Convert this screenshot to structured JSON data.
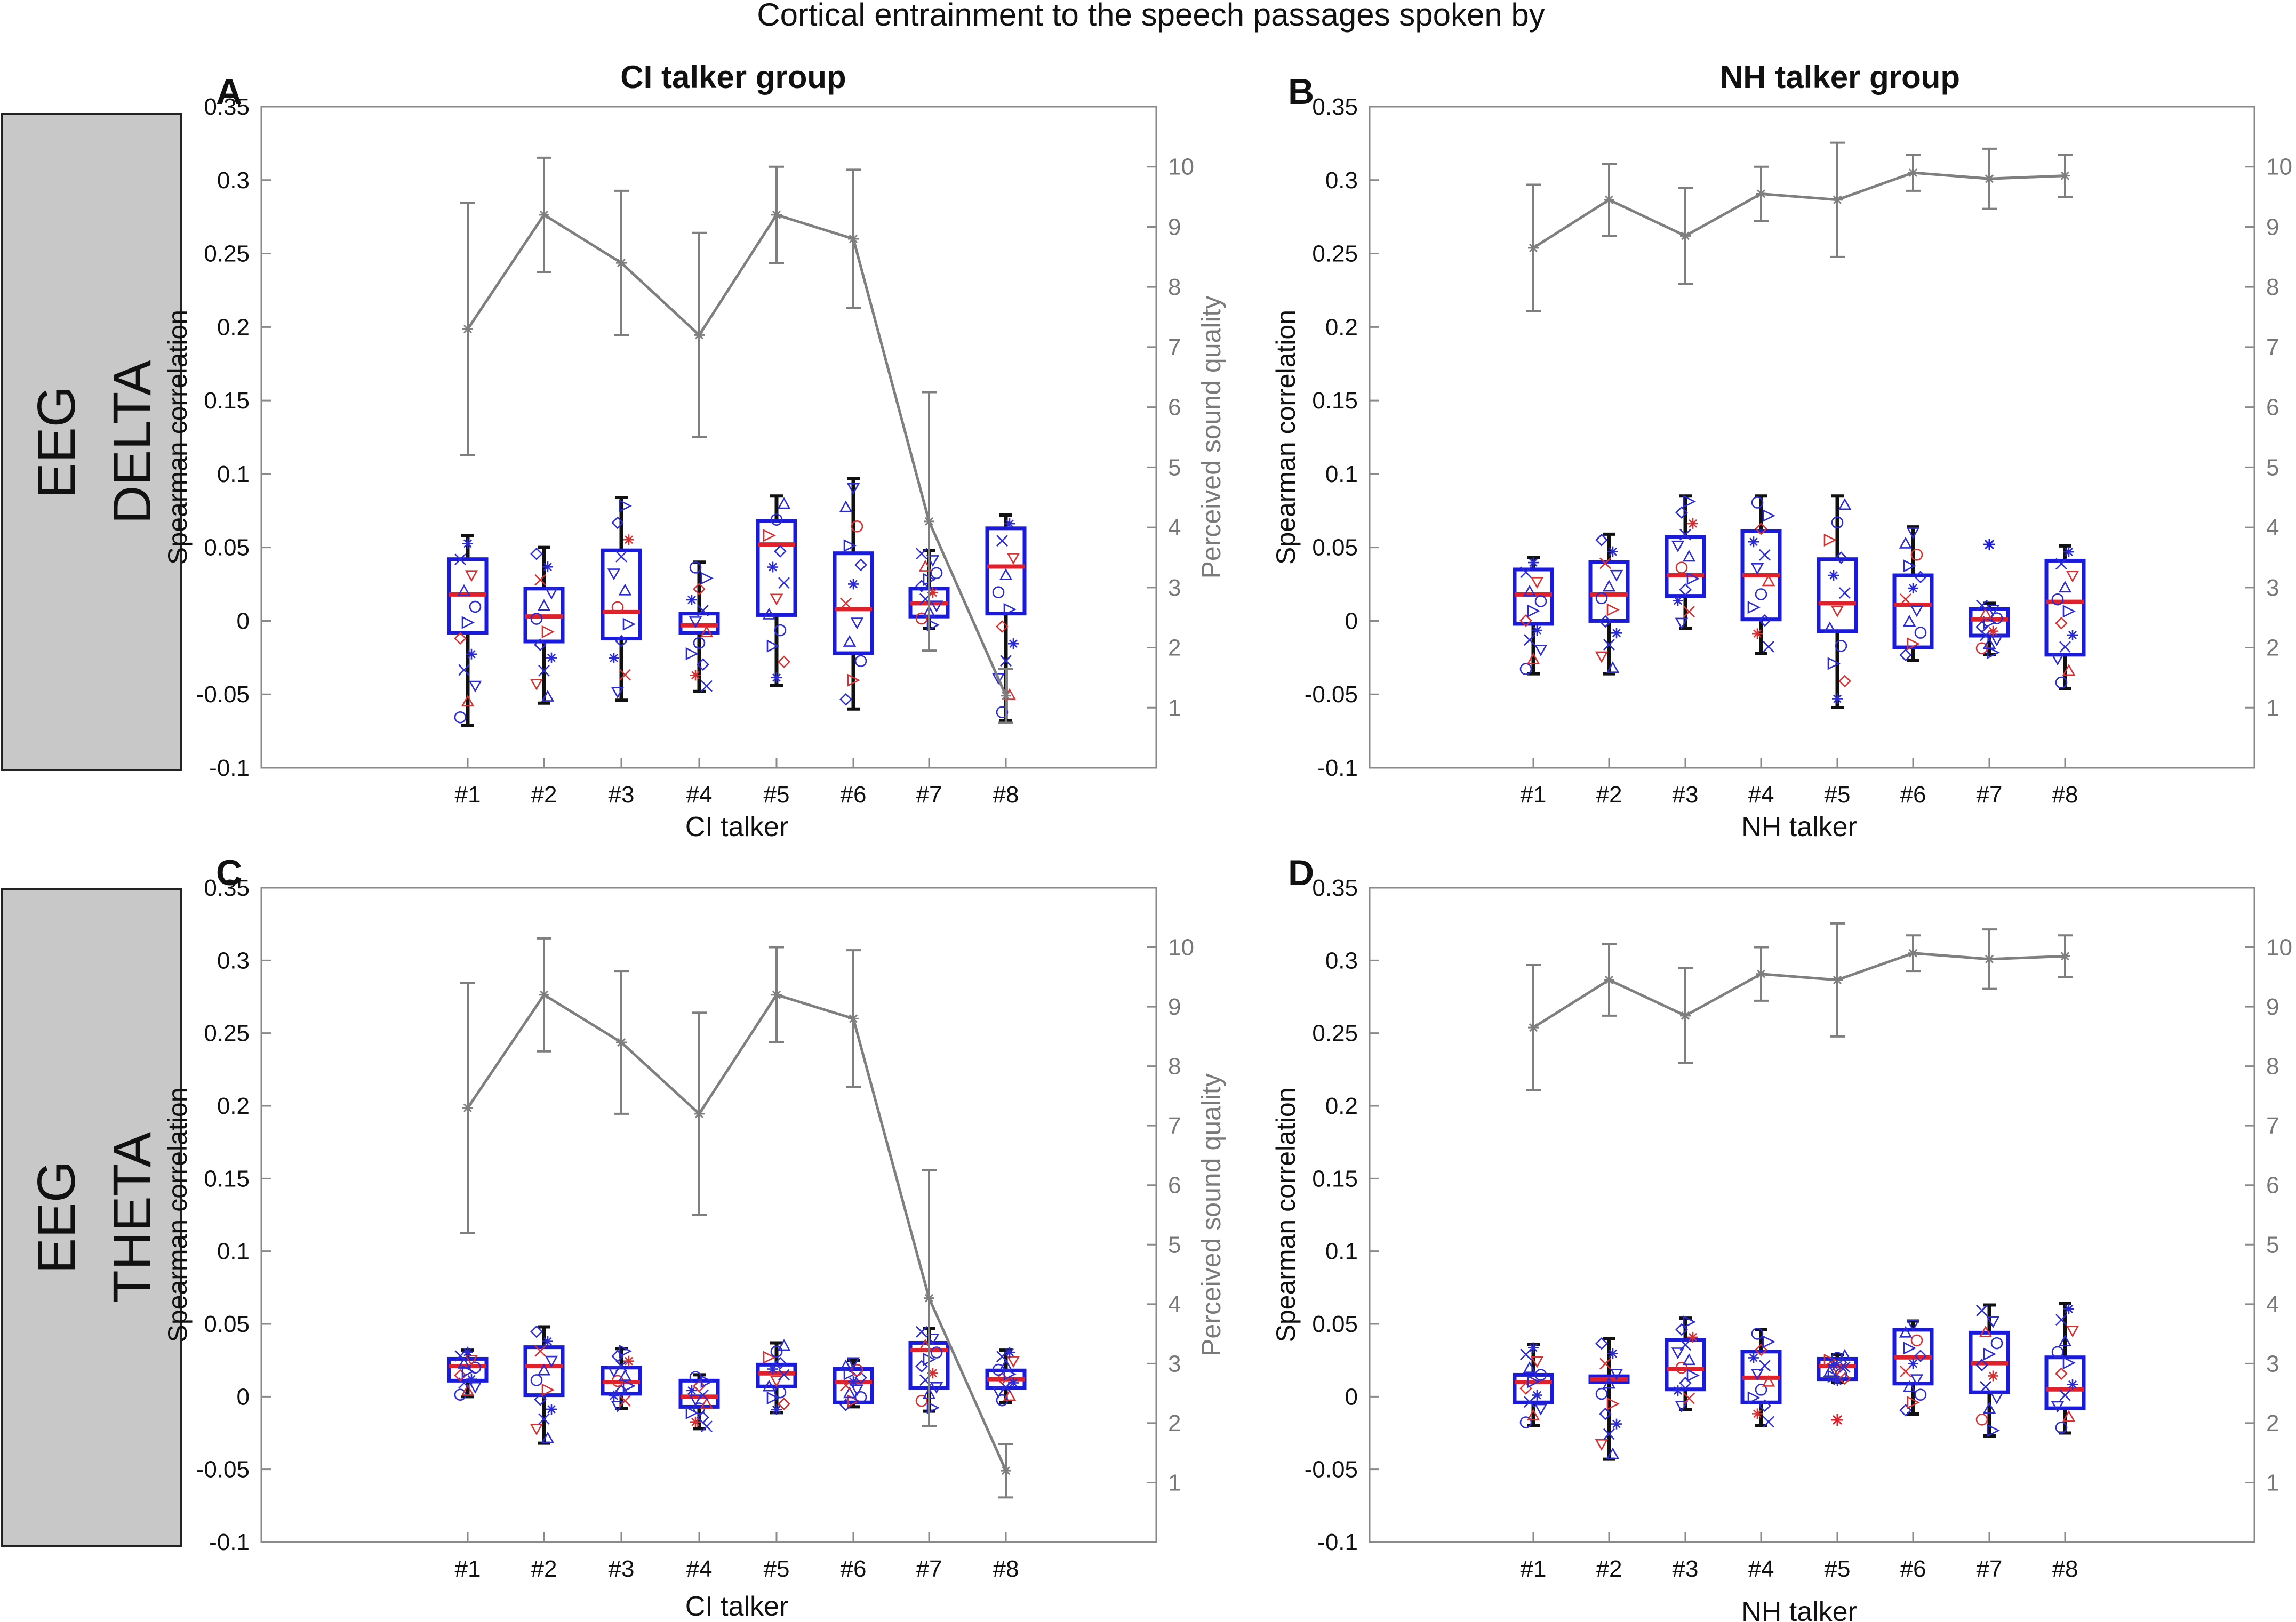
{
  "figure_title": "Cortical entrainment to the speech passages spoken by",
  "row_labels": [
    {
      "line1": "EEG",
      "line2": "DELTA"
    },
    {
      "line1": "EEG",
      "line2": "THETA"
    }
  ],
  "colors": {
    "box": "#1a1adb",
    "median": "#e0202a",
    "whisker": "#111111",
    "quality_line": "#7f7f7f",
    "axes": "#8a8a8a",
    "row_label_bg": "#c8c8c8",
    "marker_blue": "#2b2bd6",
    "marker_red": "#d83030"
  },
  "chart_data": [
    {
      "panel": "A",
      "type": "box",
      "title": "CI talker group",
      "xlabel": "CI talker",
      "ylabel": "Spearman correlation",
      "y2label": "Perceived sound quality",
      "categories": [
        "#1",
        "#2",
        "#3",
        "#4",
        "#5",
        "#6",
        "#7",
        "#8"
      ],
      "ylim": [
        -0.1,
        0.35
      ],
      "yticks": [
        "0.35",
        "0.3",
        "0.25",
        "0.2",
        "0.15",
        "0.1",
        "0.05",
        "0",
        "-0.05",
        "-0.1"
      ],
      "y2lim": [
        0,
        11
      ],
      "y2ticks": [
        "10",
        "9",
        "8",
        "7",
        "6",
        "5",
        "4",
        "3",
        "2",
        "1"
      ],
      "boxes": [
        {
          "min": -0.071,
          "q1": -0.008,
          "median": 0.018,
          "q3": 0.042,
          "max": 0.058
        },
        {
          "min": -0.056,
          "q1": -0.014,
          "median": 0.003,
          "q3": 0.022,
          "max": 0.05
        },
        {
          "min": -0.054,
          "q1": -0.012,
          "median": 0.006,
          "q3": 0.048,
          "max": 0.084
        },
        {
          "min": -0.048,
          "q1": -0.008,
          "median": -0.003,
          "q3": 0.005,
          "max": 0.04
        },
        {
          "min": -0.044,
          "q1": 0.004,
          "median": 0.052,
          "q3": 0.068,
          "max": 0.085
        },
        {
          "min": -0.06,
          "q1": -0.022,
          "median": 0.008,
          "q3": 0.046,
          "max": 0.097
        },
        {
          "min": -0.005,
          "q1": 0.003,
          "median": 0.012,
          "q3": 0.022,
          "max": 0.048
        },
        {
          "min": -0.068,
          "q1": 0.005,
          "median": 0.037,
          "q3": 0.063,
          "max": 0.072
        }
      ],
      "outliers": [],
      "quality": {
        "values": [
          7.3,
          9.2,
          8.4,
          7.2,
          9.2,
          8.8,
          4.1,
          1.2
        ],
        "errors": [
          2.1,
          0.95,
          1.2,
          1.7,
          0.8,
          1.15,
          2.15,
          0.45
        ]
      }
    },
    {
      "panel": "B",
      "type": "box",
      "title": "NH talker group",
      "xlabel": "NH talker",
      "ylabel": "Spearman correlation",
      "y2label": "Perceived sound quality",
      "categories": [
        "#1",
        "#2",
        "#3",
        "#4",
        "#5",
        "#6",
        "#7",
        "#8"
      ],
      "ylim": [
        -0.1,
        0.35
      ],
      "yticks": [
        "0.35",
        "0.3",
        "0.25",
        "0.2",
        "0.15",
        "0.1",
        "0.05",
        "0",
        "-0.05",
        "-0.1"
      ],
      "y2lim": [
        0,
        11
      ],
      "y2ticks": [
        "10",
        "9",
        "8",
        "7",
        "6",
        "5",
        "4",
        "3",
        "2",
        "1"
      ],
      "boxes": [
        {
          "min": -0.036,
          "q1": -0.002,
          "median": 0.018,
          "q3": 0.035,
          "max": 0.043
        },
        {
          "min": -0.036,
          "q1": 0.0,
          "median": 0.018,
          "q3": 0.04,
          "max": 0.059
        },
        {
          "min": -0.005,
          "q1": 0.017,
          "median": 0.031,
          "q3": 0.057,
          "max": 0.085
        },
        {
          "min": -0.022,
          "q1": 0.001,
          "median": 0.031,
          "q3": 0.061,
          "max": 0.085
        },
        {
          "min": -0.059,
          "q1": -0.007,
          "median": 0.012,
          "q3": 0.042,
          "max": 0.085
        },
        {
          "min": -0.027,
          "q1": -0.018,
          "median": 0.011,
          "q3": 0.031,
          "max": 0.064
        },
        {
          "min": -0.023,
          "q1": -0.01,
          "median": 0.001,
          "q3": 0.008,
          "max": 0.012
        },
        {
          "min": -0.046,
          "q1": -0.023,
          "median": 0.013,
          "q3": 0.041,
          "max": 0.051
        }
      ],
      "outliers": [
        {
          "index": 6,
          "value": 0.052
        }
      ],
      "quality": {
        "values": [
          8.65,
          9.45,
          8.85,
          9.55,
          9.45,
          9.9,
          9.8,
          9.85
        ],
        "errors": [
          1.05,
          0.6,
          0.8,
          0.45,
          0.95,
          0.3,
          0.5,
          0.35
        ]
      }
    },
    {
      "panel": "C",
      "type": "box",
      "title": "",
      "xlabel": "CI talker",
      "ylabel": "Spearman correlation",
      "y2label": "Perceived sound quality",
      "categories": [
        "#1",
        "#2",
        "#3",
        "#4",
        "#5",
        "#6",
        "#7",
        "#8"
      ],
      "ylim": [
        -0.1,
        0.35
      ],
      "yticks": [
        "0.35",
        "0.3",
        "0.25",
        "0.2",
        "0.15",
        "0.1",
        "0.05",
        "0",
        "-0.05",
        "-0.1"
      ],
      "y2lim": [
        0,
        11
      ],
      "y2ticks": [
        "10",
        "9",
        "8",
        "7",
        "6",
        "5",
        "4",
        "3",
        "2",
        "1"
      ],
      "boxes": [
        {
          "min": 0.0,
          "q1": 0.011,
          "median": 0.021,
          "q3": 0.026,
          "max": 0.032
        },
        {
          "min": -0.032,
          "q1": 0.001,
          "median": 0.021,
          "q3": 0.034,
          "max": 0.048
        },
        {
          "min": -0.008,
          "q1": 0.002,
          "median": 0.01,
          "q3": 0.02,
          "max": 0.033
        },
        {
          "min": -0.022,
          "q1": -0.007,
          "median": 0.0,
          "q3": 0.011,
          "max": 0.015
        },
        {
          "min": -0.011,
          "q1": 0.007,
          "median": 0.016,
          "q3": 0.022,
          "max": 0.037
        },
        {
          "min": -0.007,
          "q1": -0.004,
          "median": 0.01,
          "q3": 0.019,
          "max": 0.025
        },
        {
          "min": -0.01,
          "q1": 0.006,
          "median": 0.032,
          "q3": 0.037,
          "max": 0.047
        },
        {
          "min": -0.004,
          "q1": 0.006,
          "median": 0.012,
          "q3": 0.018,
          "max": 0.032
        }
      ],
      "outliers": [],
      "quality": {
        "values": [
          7.3,
          9.2,
          8.4,
          7.2,
          9.2,
          8.8,
          4.1,
          1.2
        ],
        "errors": [
          2.1,
          0.95,
          1.2,
          1.7,
          0.8,
          1.15,
          2.15,
          0.45
        ]
      }
    },
    {
      "panel": "D",
      "type": "box",
      "title": "",
      "xlabel": "NH talker",
      "ylabel": "Spearman correlation",
      "y2label": "Perceived sound quality",
      "categories": [
        "#1",
        "#2",
        "#3",
        "#4",
        "#5",
        "#6",
        "#7",
        "#8"
      ],
      "ylim": [
        -0.1,
        0.35
      ],
      "yticks": [
        "0.35",
        "0.3",
        "0.25",
        "0.2",
        "0.15",
        "0.1",
        "0.05",
        "0",
        "-0.05",
        "-0.1"
      ],
      "y2lim": [
        0,
        11
      ],
      "y2ticks": [
        "10",
        "9",
        "8",
        "7",
        "6",
        "5",
        "4",
        "3",
        "2",
        "1"
      ],
      "boxes": [
        {
          "min": -0.02,
          "q1": -0.004,
          "median": 0.01,
          "q3": 0.015,
          "max": 0.036
        },
        {
          "min": -0.043,
          "q1": 0.01,
          "median": 0.012,
          "q3": 0.014,
          "max": 0.04
        },
        {
          "min": -0.009,
          "q1": 0.005,
          "median": 0.019,
          "q3": 0.039,
          "max": 0.054
        },
        {
          "min": -0.02,
          "q1": -0.004,
          "median": 0.013,
          "q3": 0.031,
          "max": 0.046
        },
        {
          "min": 0.01,
          "q1": 0.012,
          "median": 0.021,
          "q3": 0.026,
          "max": 0.029
        },
        {
          "min": -0.012,
          "q1": 0.009,
          "median": 0.027,
          "q3": 0.046,
          "max": 0.052
        },
        {
          "min": -0.027,
          "q1": 0.003,
          "median": 0.023,
          "q3": 0.044,
          "max": 0.063
        },
        {
          "min": -0.025,
          "q1": -0.008,
          "median": 0.005,
          "q3": 0.027,
          "max": 0.064
        }
      ],
      "outliers": [
        {
          "index": 4,
          "value": -0.016
        }
      ],
      "quality": {
        "values": [
          8.65,
          9.45,
          8.85,
          9.55,
          9.45,
          9.9,
          9.8,
          9.85
        ],
        "errors": [
          1.05,
          0.6,
          0.8,
          0.45,
          0.95,
          0.3,
          0.5,
          0.35
        ]
      }
    }
  ]
}
